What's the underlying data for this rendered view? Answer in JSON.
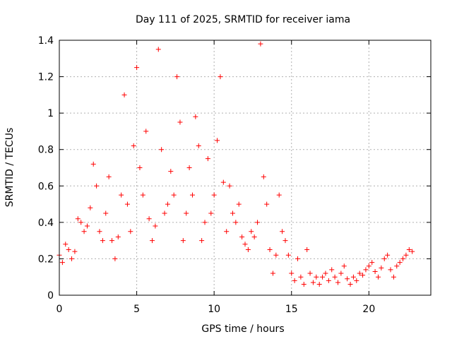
{
  "chart_data": {
    "type": "scatter",
    "title": "Day 111 of 2025, SRMTID for receiver iama",
    "xlabel": "GPS time / hours",
    "ylabel": "SRMTID / TECUs",
    "xlim": [
      0,
      24
    ],
    "ylim": [
      0,
      1.4
    ],
    "xticks": [
      0,
      5,
      10,
      15,
      20
    ],
    "xtick_labels": [
      "0",
      "5",
      "10",
      "15",
      "20"
    ],
    "yticks": [
      0,
      0.2,
      0.4,
      0.6,
      0.8,
      1.0,
      1.2,
      1.4
    ],
    "ytick_labels": [
      "0",
      "0.2",
      "0.4",
      "0.6",
      "0.8",
      "1",
      "1.2",
      "1.4"
    ],
    "grid": true,
    "marker": "+",
    "color": "#ff0000",
    "series": [
      {
        "name": "SRMTID",
        "x": [
          0.0,
          0.2,
          0.4,
          0.6,
          0.8,
          1.0,
          1.2,
          1.4,
          1.6,
          1.8,
          2.0,
          2.2,
          2.4,
          2.6,
          2.8,
          3.0,
          3.2,
          3.4,
          3.6,
          3.8,
          4.0,
          4.2,
          4.4,
          4.6,
          4.8,
          5.0,
          5.2,
          5.4,
          5.6,
          5.8,
          6.0,
          6.2,
          6.4,
          6.6,
          6.8,
          7.0,
          7.2,
          7.4,
          7.6,
          7.8,
          8.0,
          8.2,
          8.4,
          8.6,
          8.8,
          9.0,
          9.2,
          9.4,
          9.6,
          9.8,
          10.0,
          10.2,
          10.4,
          10.6,
          10.8,
          11.0,
          11.2,
          11.4,
          11.6,
          11.8,
          12.0,
          12.2,
          12.4,
          12.6,
          12.8,
          13.0,
          13.2,
          13.4,
          13.6,
          13.8,
          14.0,
          14.2,
          14.4,
          14.6,
          14.8,
          15.0,
          15.2,
          15.4,
          15.6,
          15.8,
          16.0,
          16.2,
          16.4,
          16.6,
          16.8,
          17.0,
          17.2,
          17.4,
          17.6,
          17.8,
          18.0,
          18.2,
          18.4,
          18.6,
          18.8,
          19.0,
          19.2,
          19.4,
          19.6,
          19.8,
          20.0,
          20.2,
          20.4,
          20.6,
          20.8,
          21.0,
          21.2,
          21.4,
          21.6,
          21.8,
          22.0,
          22.2,
          22.4,
          22.6,
          22.8
        ],
        "y": [
          0.22,
          0.18,
          0.28,
          0.25,
          0.2,
          0.24,
          0.42,
          0.4,
          0.35,
          0.38,
          0.48,
          0.72,
          0.6,
          0.35,
          0.3,
          0.45,
          0.65,
          0.3,
          0.2,
          0.32,
          0.55,
          1.1,
          0.5,
          0.35,
          0.82,
          1.25,
          0.7,
          0.55,
          0.9,
          0.42,
          0.3,
          0.38,
          1.35,
          0.8,
          0.45,
          0.5,
          0.68,
          0.55,
          1.2,
          0.95,
          0.3,
          0.45,
          0.7,
          0.55,
          0.98,
          0.82,
          0.3,
          0.4,
          0.75,
          0.45,
          0.55,
          0.85,
          1.2,
          0.62,
          0.35,
          0.6,
          0.45,
          0.4,
          0.5,
          0.32,
          0.28,
          0.25,
          0.35,
          0.32,
          0.4,
          1.38,
          0.65,
          0.5,
          0.25,
          0.12,
          0.22,
          0.55,
          0.35,
          0.3,
          0.22,
          0.12,
          0.08,
          0.2,
          0.1,
          0.06,
          0.25,
          0.12,
          0.07,
          0.1,
          0.06,
          0.1,
          0.12,
          0.08,
          0.14,
          0.1,
          0.07,
          0.12,
          0.16,
          0.09,
          0.06,
          0.1,
          0.08,
          0.12,
          0.11,
          0.14,
          0.16,
          0.18,
          0.13,
          0.1,
          0.15,
          0.2,
          0.22,
          0.14,
          0.1,
          0.16,
          0.18,
          0.2,
          0.22,
          0.25,
          0.24
        ]
      }
    ]
  }
}
